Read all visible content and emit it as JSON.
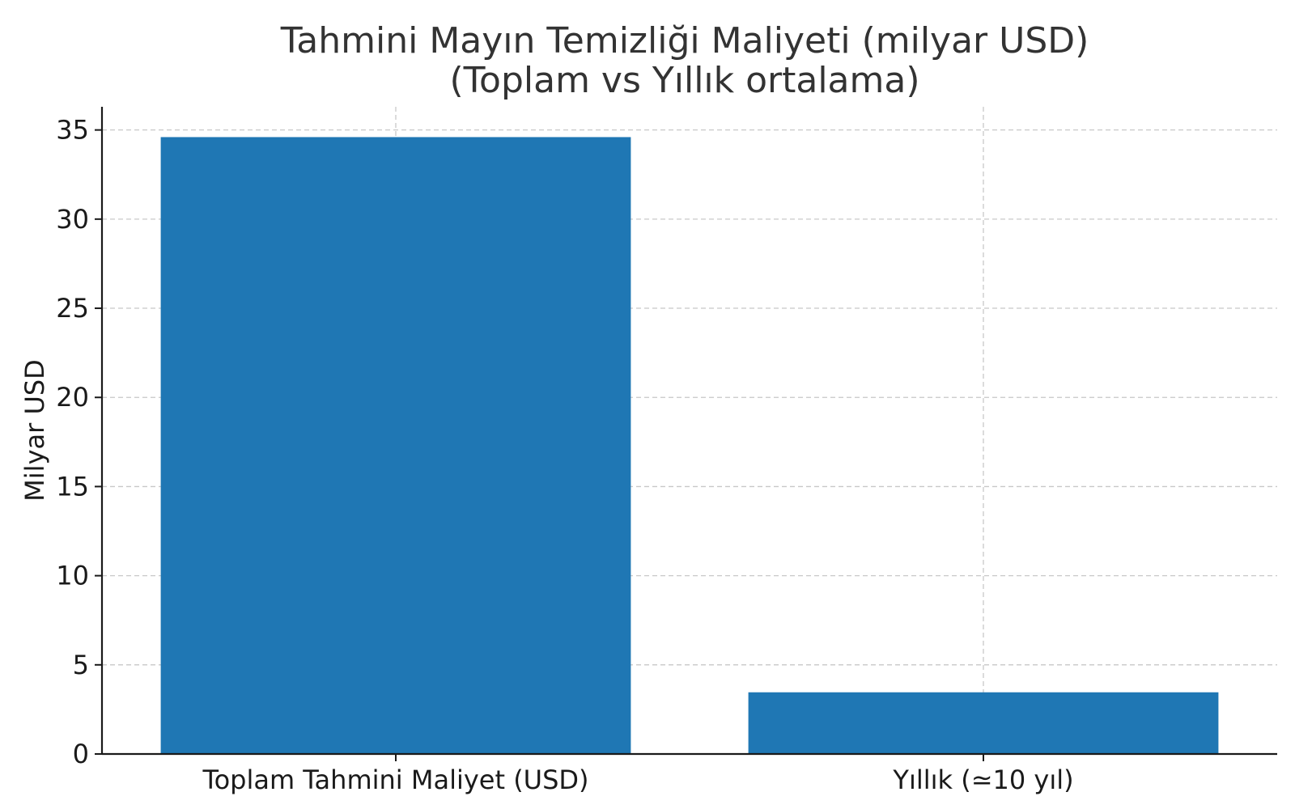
{
  "chart_data": {
    "type": "bar",
    "title_lines": [
      "Tahmini Mayın Temizliği Maliyeti (milyar USD)",
      "(Toplam vs Yıllık ortalama)"
    ],
    "xlabel": "",
    "ylabel": "Milyar USD",
    "categories": [
      "Toplam Tahmini Maliyet (USD)",
      "Yıllık (≃10 yıl)"
    ],
    "values": [
      34.6,
      3.46
    ],
    "ylim": [
      0,
      36.3
    ],
    "yticks": [
      0,
      5,
      10,
      15,
      20,
      25,
      30,
      35
    ],
    "grid": true,
    "bar_color": "#1f77b4"
  }
}
